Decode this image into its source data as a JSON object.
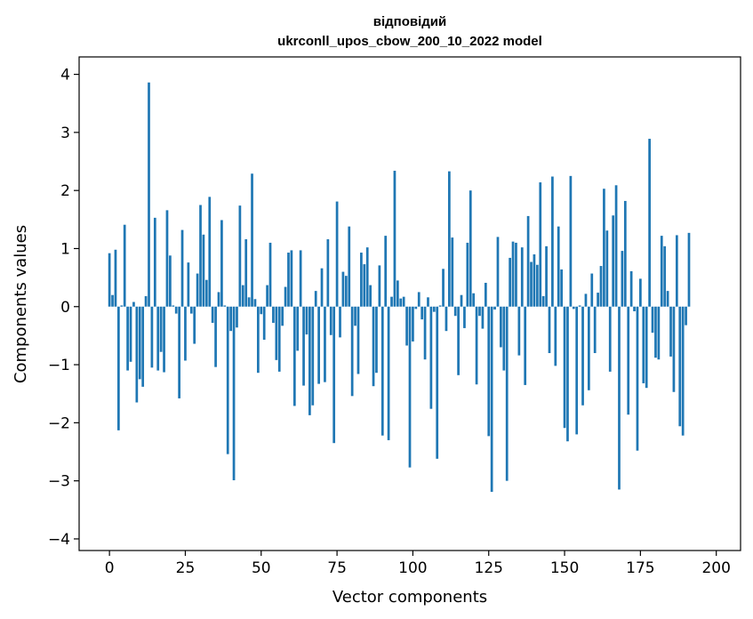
{
  "chart_data": {
    "type": "bar",
    "title": [
      "відповідий",
      "ukrconll_upos_cbow_200_10_2022 model"
    ],
    "xlabel": "Vector components",
    "ylabel": "Components values",
    "xlim": [
      -10,
      208
    ],
    "ylim": [
      -4.2,
      4.3
    ],
    "xticks": [
      0,
      25,
      50,
      75,
      100,
      125,
      150,
      175,
      200
    ],
    "yticks": [
      -4,
      -3,
      -2,
      -1,
      0,
      1,
      2,
      3,
      4
    ],
    "xtick_labels": [
      "0",
      "25",
      "50",
      "75",
      "100",
      "125",
      "150",
      "175",
      "200"
    ],
    "ytick_labels": [
      "−4",
      "−3",
      "−2",
      "−1",
      "0",
      "1",
      "2",
      "3",
      "4"
    ],
    "bar_color": "#1f77b4",
    "grid": false,
    "values": [
      0.92,
      0.2,
      0.98,
      -2.13,
      0.02,
      1.41,
      -1.1,
      -0.95,
      0.08,
      -1.65,
      -1.25,
      -1.38,
      0.18,
      3.86,
      -1.05,
      1.53,
      -1.1,
      -0.78,
      -1.13,
      1.66,
      0.88,
      0.02,
      -0.12,
      -1.58,
      1.32,
      -0.93,
      0.76,
      -0.12,
      -0.64,
      0.57,
      1.75,
      1.24,
      0.46,
      1.89,
      -0.28,
      -1.04,
      0.25,
      1.49,
      0.02,
      -2.54,
      -0.42,
      -2.99,
      -0.36,
      1.74,
      0.37,
      1.16,
      0.16,
      2.29,
      0.13,
      -1.14,
      -0.13,
      -0.57,
      0.37,
      1.1,
      -0.28,
      -0.92,
      -1.12,
      -0.33,
      0.34,
      0.93,
      0.97,
      -1.71,
      -0.76,
      0.97,
      -1.36,
      -0.48,
      -1.87,
      -1.7,
      0.27,
      -1.33,
      0.66,
      -1.3,
      1.16,
      -0.49,
      -2.35,
      1.81,
      -0.53,
      0.6,
      0.53,
      1.38,
      -1.54,
      -0.33,
      -1.16,
      0.93,
      0.73,
      1.02,
      0.37,
      -1.37,
      -1.14,
      0.71,
      -2.22,
      1.22,
      -2.3,
      0.17,
      2.34,
      0.45,
      0.14,
      0.17,
      -0.67,
      -2.77,
      -0.6,
      -0.04,
      0.25,
      -0.22,
      -0.91,
      0.16,
      -1.76,
      -0.09,
      -2.62,
      0.02,
      0.65,
      -0.42,
      2.33,
      1.19,
      -0.16,
      -1.18,
      0.2,
      -0.37,
      1.1,
      2.0,
      0.23,
      -1.34,
      -0.16,
      -0.38,
      0.41,
      -2.23,
      -3.19,
      -0.05,
      1.2,
      -0.7,
      -1.1,
      -3.0,
      0.84,
      1.12,
      1.1,
      -0.84,
      1.02,
      -1.35,
      1.56,
      0.77,
      0.9,
      0.72,
      2.14,
      0.18,
      1.04,
      -0.8,
      2.24,
      -1.02,
      1.38,
      0.64,
      -2.09,
      -2.32,
      2.25,
      -0.04,
      -2.2,
      0.02,
      -1.7,
      0.22,
      -1.44,
      0.57,
      -0.8,
      0.24,
      0.7,
      2.03,
      1.31,
      -1.12,
      1.57,
      2.09,
      -3.15,
      0.96,
      1.82,
      -1.86,
      0.61,
      -0.08,
      -2.48,
      0.48,
      -1.32,
      -1.4,
      2.89,
      -0.45,
      -0.88,
      -0.91,
      1.22,
      1.04,
      0.27,
      -0.86,
      -1.47,
      1.23,
      -2.06,
      -2.22,
      -0.32,
      1.27
    ]
  }
}
